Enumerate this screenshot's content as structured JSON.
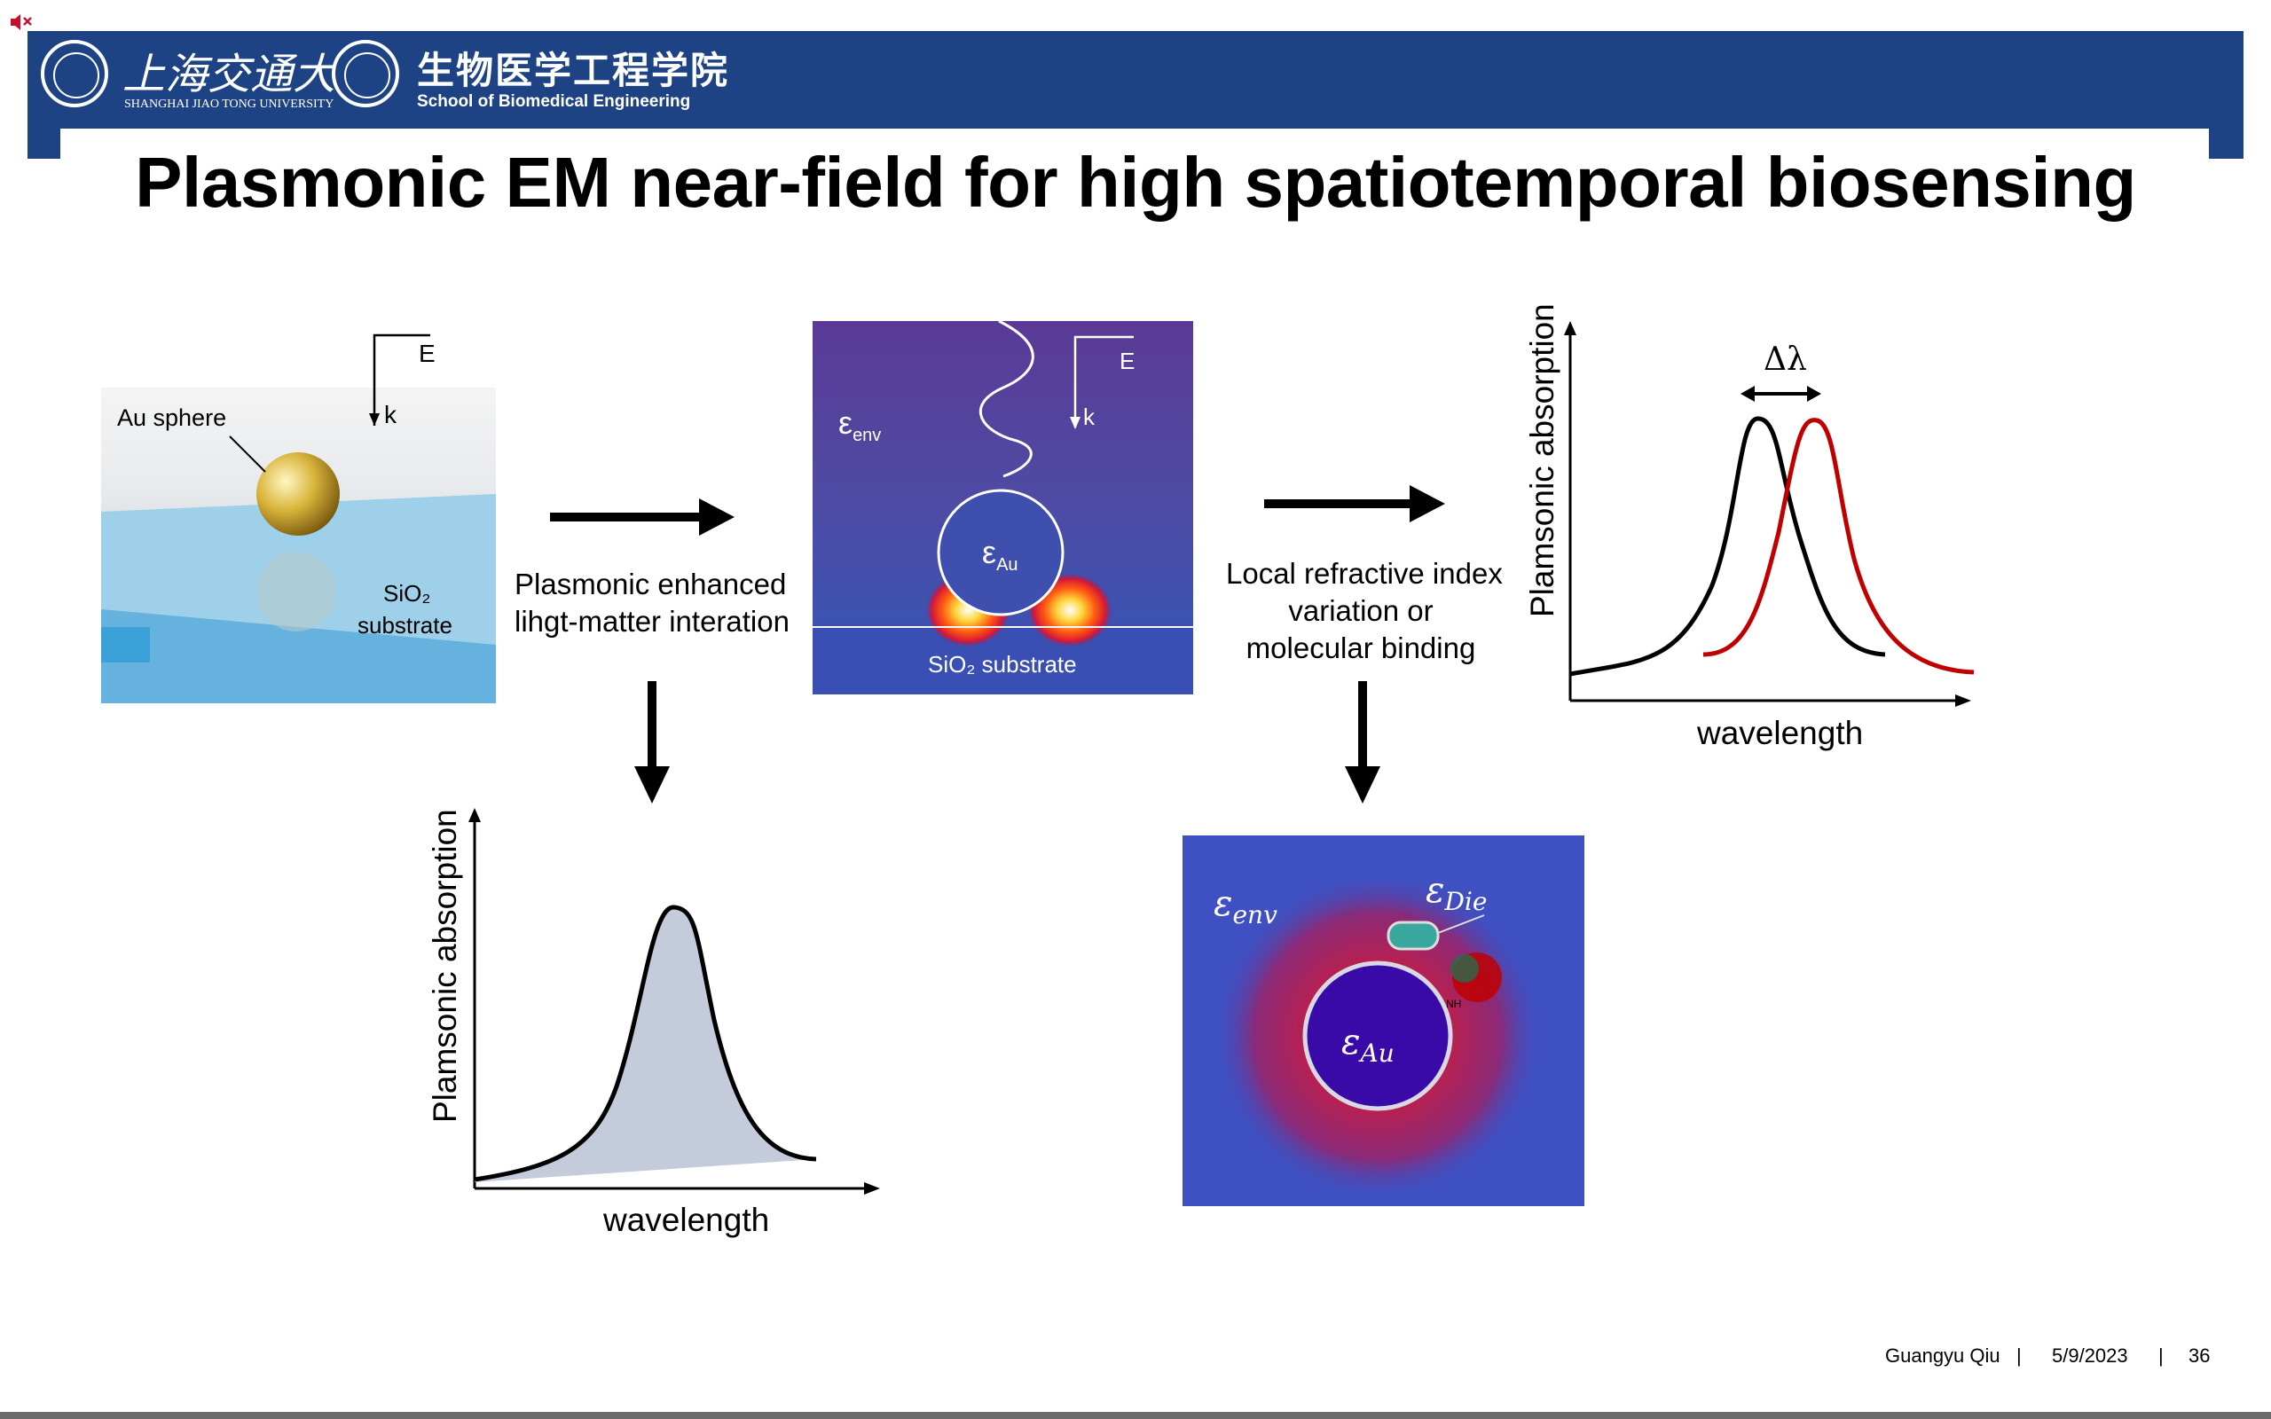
{
  "header": {
    "university_cn": "上海交通大学",
    "university_en": "SHANGHAI JIAO TONG UNIVERSITY",
    "school_cn": "生物医学工程学院",
    "school_en": "School of Biomedical Engineering",
    "color": "#1e4385"
  },
  "slide": {
    "title": "Plasmonic EM near-field for high spatiotemporal biosensing"
  },
  "figure1": {
    "au_sphere_label": "Au sphere",
    "sio2_label": "SiO₂",
    "substrate_label": "substrate",
    "e_label": "E",
    "k_label": "k"
  },
  "step1": {
    "line1": "Plasmonic enhanced",
    "line2": "lihgt-matter interation"
  },
  "figure2": {
    "eps_env_base": "ε",
    "eps_env_sub": "env",
    "eps_au_base": "ε",
    "eps_au_sub": "Au",
    "substrate_label": "SiO₂ substrate",
    "e_label": "E",
    "k_label": "k"
  },
  "step2": {
    "line1": "Local refractive index",
    "line2": "variation or",
    "line3": "molecular binding"
  },
  "chart_shift": {
    "ylabel": "Plamsonic absorption",
    "xlabel": "wavelength",
    "shift_label": "Δλ",
    "colors": {
      "before": "#000000",
      "after": "#c00000"
    }
  },
  "chart_single": {
    "ylabel": "Plamsonic absorption",
    "xlabel": "wavelength",
    "fill_color": "#c4ccdb"
  },
  "figure3": {
    "eps_env_base": "ε",
    "eps_env_sub": "env",
    "eps_die_base": "ε",
    "eps_die_sub": "Die",
    "eps_au_base": "ε",
    "eps_au_sub": "Au",
    "nh_label": "NH"
  },
  "footer": {
    "author": "Guangyu Qiu",
    "sep": "|",
    "date": "5/9/2023",
    "page": "36"
  },
  "chart_data": [
    {
      "type": "line",
      "title": "",
      "xlabel": "wavelength",
      "ylabel": "Plamsonic absorption",
      "annotations": [
        "Δλ"
      ],
      "series": [
        {
          "peak_position_fraction": 0.46,
          "color": "#000000"
        },
        {
          "peak_position_fraction": 0.62,
          "color": "#c00000"
        }
      ]
    },
    {
      "type": "area",
      "title": "",
      "xlabel": "wavelength",
      "ylabel": "Plamsonic absorption",
      "series": [
        {
          "peak_position_fraction": 0.52,
          "color": "#000000"
        }
      ]
    }
  ]
}
